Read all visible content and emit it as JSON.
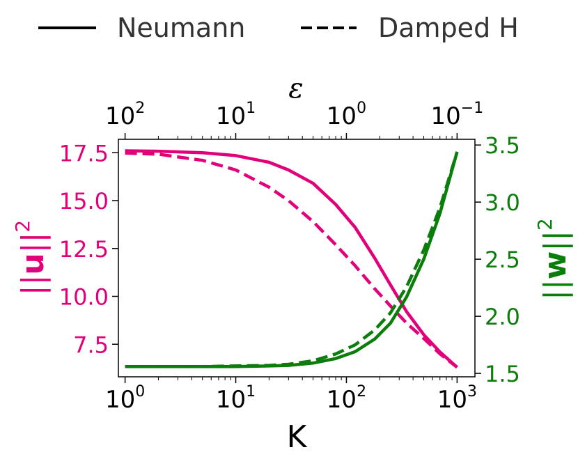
{
  "colors": {
    "left_axis": "#e2007a",
    "right_axis": "#0a7d0a",
    "legend_text": "#333333",
    "axis": "#000000"
  },
  "chart_data": {
    "type": "line",
    "legend": {
      "placement": "top",
      "entries": [
        {
          "label": "Neumann",
          "style": "solid"
        },
        {
          "label": "Damped H",
          "style": "dashed"
        }
      ]
    },
    "x_axis": {
      "label": "K",
      "scale": "log",
      "range": [
        0.87,
        1450
      ],
      "ticks": [
        {
          "value": 1,
          "base": "10",
          "exp": "0"
        },
        {
          "value": 10,
          "base": "10",
          "exp": "1"
        },
        {
          "value": 100,
          "base": "10",
          "exp": "2"
        },
        {
          "value": 1000,
          "base": "10",
          "exp": "3"
        }
      ]
    },
    "top_axis": {
      "label": "ε",
      "scale": "log",
      "ticks": [
        {
          "at_K": 1,
          "base": "10",
          "exp": "2"
        },
        {
          "at_K": 10,
          "base": "10",
          "exp": "1"
        },
        {
          "at_K": 100,
          "base": "10",
          "exp": "0"
        },
        {
          "at_K": 1000,
          "base": "10",
          "exp": "−1"
        }
      ]
    },
    "y_left": {
      "label_prefix": "||",
      "label_var": "u",
      "label_suffix": "||",
      "label_sup": "2",
      "range": [
        5.8,
        18.2
      ],
      "ticks": [
        "7.5",
        "10.0",
        "12.5",
        "15.0",
        "17.5"
      ]
    },
    "y_right": {
      "label_prefix": "||",
      "label_var": "w",
      "label_suffix": "||",
      "label_sup": "2",
      "range": [
        1.47,
        3.55
      ],
      "ticks": [
        "1.5",
        "2.0",
        "2.5",
        "3.0",
        "3.5"
      ]
    },
    "x": [
      1,
      2,
      5,
      10,
      20,
      30,
      50,
      80,
      120,
      180,
      250,
      350,
      500,
      700,
      1000
    ],
    "series": [
      {
        "name": "Neumann",
        "axis": "left",
        "style": "solid",
        "values": [
          17.6,
          17.58,
          17.5,
          17.35,
          17.0,
          16.6,
          15.9,
          14.8,
          13.6,
          12.0,
          10.6,
          9.2,
          8.0,
          7.1,
          6.3
        ]
      },
      {
        "name": "Damped H",
        "axis": "left",
        "style": "dashed",
        "values": [
          17.48,
          17.42,
          17.1,
          16.6,
          15.7,
          15.0,
          13.9,
          12.7,
          11.6,
          10.4,
          9.5,
          8.6,
          7.8,
          7.0,
          6.3
        ]
      },
      {
        "name": "Neumann",
        "axis": "right",
        "style": "solid",
        "values": [
          1.56,
          1.56,
          1.56,
          1.56,
          1.565,
          1.57,
          1.59,
          1.63,
          1.69,
          1.8,
          1.94,
          2.17,
          2.5,
          2.9,
          3.44
        ]
      },
      {
        "name": "Damped H",
        "axis": "right",
        "style": "dashed",
        "values": [
          1.56,
          1.56,
          1.56,
          1.565,
          1.57,
          1.58,
          1.61,
          1.67,
          1.75,
          1.88,
          2.03,
          2.26,
          2.58,
          2.95,
          3.44
        ]
      }
    ]
  }
}
